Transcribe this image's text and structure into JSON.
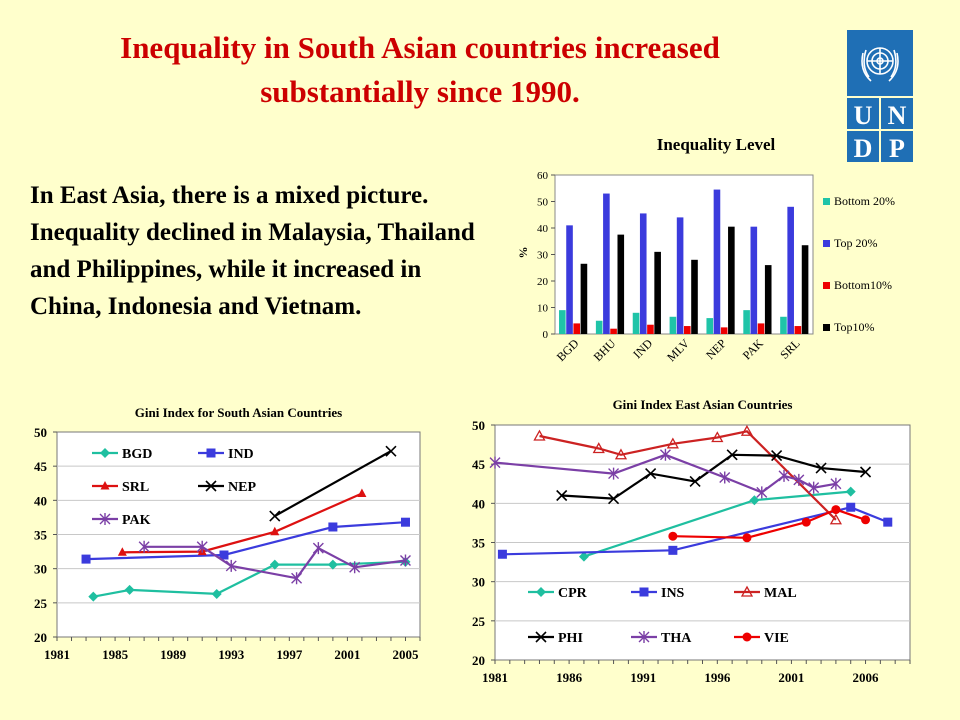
{
  "slide": {
    "title_line1": "Inequality in South Asian countries increased",
    "title_line2": "substantially since 1990.",
    "body_text": "In East Asia, there is a mixed picture. Inequality declined in Malaysia, Thailand and Philippines, while it increased in China, Indonesia and Vietnam.",
    "logo_letters": [
      "U",
      "N",
      "D",
      "P"
    ],
    "colors": {
      "title": "#cc0000",
      "background": "#ffffcc",
      "logo": "#1f6fb5"
    }
  },
  "chart_data": [
    {
      "type": "bar",
      "title": "Inequality Level",
      "ylabel": "%",
      "ylim": [
        0,
        60
      ],
      "yticks": [
        0,
        10,
        20,
        30,
        40,
        50,
        60
      ],
      "categories": [
        "BGD",
        "BHU",
        "IND",
        "MLV",
        "NEP",
        "PAK",
        "SRL"
      ],
      "legend_position": "right",
      "series": [
        {
          "name": "Bottom 20%",
          "color": "#1fc4a8",
          "values": [
            9,
            5,
            8,
            6.5,
            6,
            9,
            6.5
          ]
        },
        {
          "name": "Top 20%",
          "color": "#3b3bdd",
          "values": [
            41,
            53,
            45.5,
            44,
            54.5,
            40.5,
            48
          ]
        },
        {
          "name": "Bottom10%",
          "color": "#ee0000",
          "values": [
            4,
            2,
            3.5,
            3,
            2.5,
            4,
            3
          ]
        },
        {
          "name": "Top10%",
          "color": "#000000",
          "values": [
            26.5,
            37.5,
            31,
            28,
            40.5,
            26,
            33.5
          ]
        }
      ]
    },
    {
      "type": "line",
      "title": "Gini Index for South Asian Countries",
      "xlim": [
        1981,
        2006
      ],
      "ylim": [
        20,
        50
      ],
      "xticks": [
        1981,
        1985,
        1989,
        1993,
        1997,
        2001,
        2005
      ],
      "yticks": [
        20,
        25,
        30,
        35,
        40,
        45,
        50
      ],
      "legend_position": "top-left",
      "series": [
        {
          "name": "BGD",
          "color": "#1fbfa0",
          "marker": "diamond",
          "points": [
            [
              1983.5,
              25.9
            ],
            [
              1986,
              26.9
            ],
            [
              1992,
              26.3
            ],
            [
              1996,
              30.6
            ],
            [
              2000,
              30.6
            ],
            [
              2005,
              31.0
            ]
          ]
        },
        {
          "name": "IND",
          "color": "#3b3bdd",
          "marker": "square",
          "points": [
            [
              1983,
              31.4
            ],
            [
              1992.5,
              32.0
            ],
            [
              2000,
              36.1
            ],
            [
              2005,
              36.8
            ]
          ]
        },
        {
          "name": "SRL",
          "color": "#dd1111",
          "marker": "triangle",
          "points": [
            [
              1985.5,
              32.4
            ],
            [
              1991,
              32.5
            ],
            [
              1996,
              35.4
            ],
            [
              2002,
              41.0
            ]
          ]
        },
        {
          "name": "NEP",
          "color": "#000000",
          "marker": "x",
          "points": [
            [
              1996,
              37.7
            ],
            [
              2004,
              47.2
            ]
          ]
        },
        {
          "name": "PAK",
          "color": "#7b3fa6",
          "marker": "star",
          "points": [
            [
              1987,
              33.2
            ],
            [
              1991,
              33.2
            ],
            [
              1993,
              30.4
            ],
            [
              1997.5,
              28.6
            ],
            [
              1999,
              33.0
            ],
            [
              2001.5,
              30.2
            ],
            [
              2005,
              31.2
            ]
          ]
        }
      ]
    },
    {
      "type": "line",
      "title": "Gini Index East Asian Countries",
      "xlim": [
        1981,
        2009
      ],
      "ylim": [
        20,
        50
      ],
      "xticks": [
        1981,
        1986,
        1991,
        1996,
        2001,
        2006
      ],
      "yticks": [
        20,
        25,
        30,
        35,
        40,
        45,
        50
      ],
      "legend_position": "bottom",
      "series": [
        {
          "name": "CPR",
          "color": "#1fbfa0",
          "marker": "diamond",
          "points": [
            [
              1987,
              33.2
            ],
            [
              1998.5,
              40.4
            ],
            [
              2005,
              41.5
            ]
          ]
        },
        {
          "name": "INS",
          "color": "#3b3bdd",
          "marker": "square",
          "points": [
            [
              1981.5,
              33.5
            ],
            [
              1993,
              34.0
            ],
            [
              2005,
              39.5
            ],
            [
              2007.5,
              37.6
            ]
          ]
        },
        {
          "name": "MAL",
          "color": "#cc2222",
          "marker": "open-triangle",
          "points": [
            [
              1984,
              48.6
            ],
            [
              1988,
              47.0
            ],
            [
              1989.5,
              46.2
            ],
            [
              1993,
              47.6
            ],
            [
              1996,
              48.4
            ],
            [
              1998,
              49.2
            ],
            [
              2004,
              37.9
            ]
          ]
        },
        {
          "name": "PHI",
          "color": "#000000",
          "marker": "x",
          "points": [
            [
              1985.5,
              41.0
            ],
            [
              1989,
              40.6
            ],
            [
              1991.5,
              43.8
            ],
            [
              1994.5,
              42.8
            ],
            [
              1997,
              46.2
            ],
            [
              2000,
              46.1
            ],
            [
              2003,
              44.5
            ],
            [
              2006,
              44.0
            ]
          ]
        },
        {
          "name": "THA",
          "color": "#7b3fa6",
          "marker": "star",
          "points": [
            [
              1981,
              45.2
            ],
            [
              1989,
              43.8
            ],
            [
              1992.5,
              46.2
            ],
            [
              1996.5,
              43.3
            ],
            [
              1999,
              41.4
            ],
            [
              2000.5,
              43.5
            ],
            [
              2001.5,
              43.0
            ],
            [
              2002.5,
              42.0
            ],
            [
              2004,
              42.5
            ]
          ]
        },
        {
          "name": "VIE",
          "color": "#ee0000",
          "marker": "circle",
          "points": [
            [
              1993,
              35.8
            ],
            [
              1998,
              35.6
            ],
            [
              2002,
              37.6
            ],
            [
              2004,
              39.2
            ],
            [
              2006,
              37.9
            ]
          ]
        }
      ]
    }
  ]
}
